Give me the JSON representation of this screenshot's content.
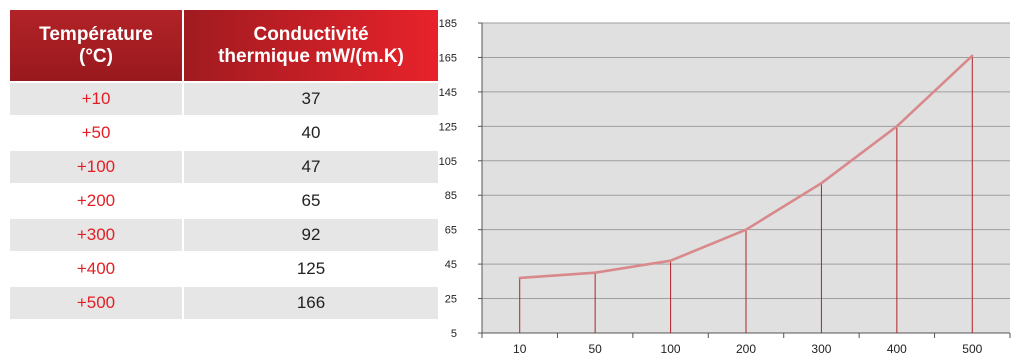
{
  "table": {
    "header_temperature": "Température\n(°C)",
    "header_conductivity": "Conductivité\nthermique mW/(m.K)",
    "rows": [
      {
        "temperature": "+10",
        "conductivity": "37"
      },
      {
        "temperature": "+50",
        "conductivity": "40"
      },
      {
        "temperature": "+100",
        "conductivity": "47"
      },
      {
        "temperature": "+200",
        "conductivity": "65"
      },
      {
        "temperature": "+300",
        "conductivity": "92"
      },
      {
        "temperature": "+400",
        "conductivity": "125"
      },
      {
        "temperature": "+500",
        "conductivity": "166"
      }
    ]
  },
  "chart_data": {
    "type": "line",
    "categories": [
      "10",
      "50",
      "100",
      "200",
      "300",
      "400",
      "500"
    ],
    "values": [
      37,
      40,
      47,
      65,
      92,
      125,
      166
    ],
    "ylim": [
      5,
      185
    ],
    "yticks": [
      5,
      25,
      45,
      65,
      85,
      105,
      125,
      145,
      165,
      185
    ],
    "grid": true,
    "drop_lines": true,
    "colors": {
      "plot_background": "#e0e0e0",
      "line": "#d9898b",
      "drop_line": "#b22328",
      "grid": "#9e9e9e",
      "axis": "#555555"
    }
  }
}
